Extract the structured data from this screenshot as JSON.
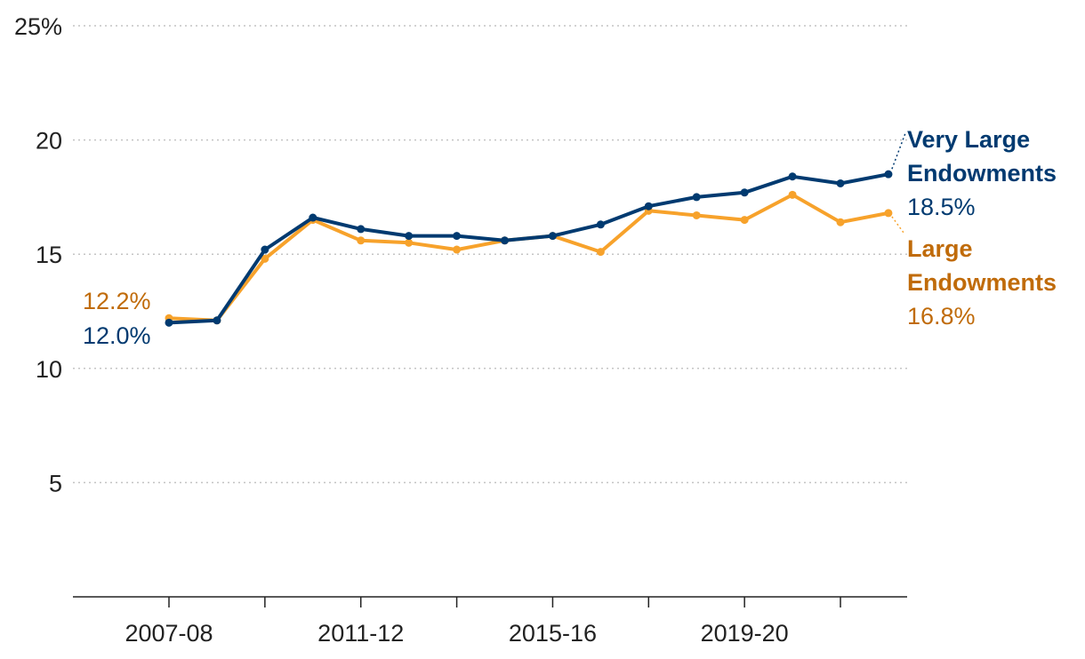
{
  "chart_data": {
    "type": "line",
    "x": [
      "2007-08",
      "2008-09",
      "2009-10",
      "2010-11",
      "2011-12",
      "2012-13",
      "2013-14",
      "2014-15",
      "2015-16",
      "2016-17",
      "2017-18",
      "2018-19",
      "2019-20",
      "2020-21",
      "2021-22",
      "2022-23"
    ],
    "x_tick_labels": [
      "2007-08",
      "",
      "",
      "",
      "2011-12",
      "",
      "",
      "",
      "2015-16",
      "",
      "",
      "",
      "2019-20",
      "",
      "",
      ""
    ],
    "y_ticks": [
      5,
      10,
      15,
      20,
      25
    ],
    "y_tick_labels": [
      "5",
      "10",
      "15",
      "20",
      "25%"
    ],
    "ylim": [
      0,
      25
    ],
    "grid": "horizontal dotted",
    "legend": "direct labels at line ends",
    "series": [
      {
        "name_lines": [
          "Very Large",
          "Endowments"
        ],
        "end_value_label": "18.5%",
        "start_value_label": "12.0%",
        "color": "#003a70",
        "values": [
          12.0,
          12.1,
          15.2,
          16.6,
          16.1,
          15.8,
          15.8,
          15.6,
          15.8,
          16.3,
          17.1,
          17.5,
          17.7,
          18.4,
          18.1,
          18.5
        ]
      },
      {
        "name_lines": [
          "Large",
          "Endowments"
        ],
        "end_value_label": "16.8%",
        "start_value_label": "12.2%",
        "color": "#f7a22b",
        "label_color": "#c06b0a",
        "values": [
          12.2,
          12.1,
          14.8,
          16.5,
          15.6,
          15.5,
          15.2,
          15.6,
          15.8,
          15.1,
          16.9,
          16.7,
          16.5,
          17.6,
          16.4,
          16.8
        ]
      }
    ]
  }
}
